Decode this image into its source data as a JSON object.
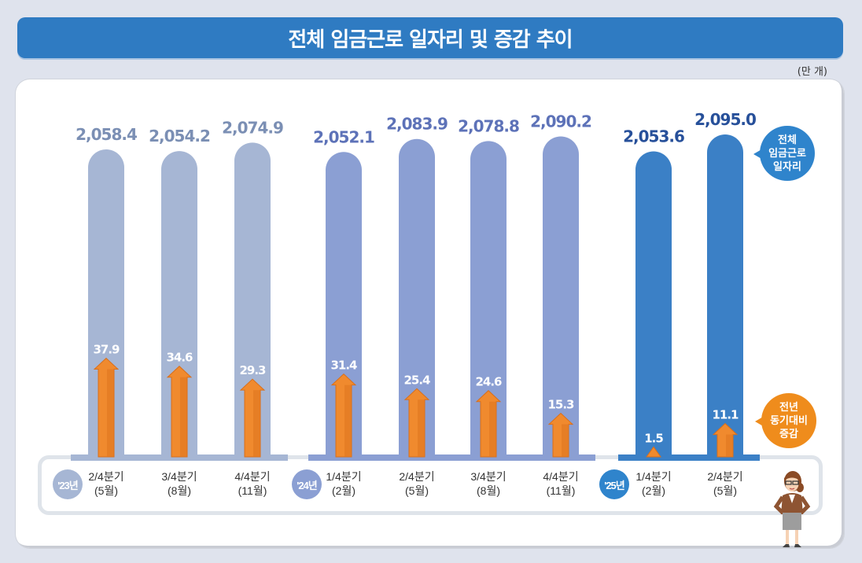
{
  "header": {
    "title": "전체 임금근로 일자리 및 증감 추이",
    "unit": "(만 개)"
  },
  "legend": {
    "total_callout": [
      "전체",
      "임금근로",
      "일자리"
    ],
    "change_callout": [
      "전년",
      "동기대비",
      "증감"
    ]
  },
  "colors": {
    "title_bar": "#2f7bc2",
    "group_2023": "#a6b6d4",
    "group_2024": "#8b9fd3",
    "group_2025": "#3b80c6",
    "label_2023": "#7b8fb4",
    "label_2024": "#5d72b8",
    "label_2025": "#27509a",
    "arrow": "#f08a2e",
    "callout_change": "#ef8c1c",
    "callout_total": "#2f84cc"
  },
  "chart_data": {
    "type": "bar",
    "title": "전체 임금근로 일자리 및 증감 추이",
    "unit": "만 개",
    "groups": [
      {
        "year": "'23년",
        "year_badge": "'23년",
        "color_key": "2023",
        "categories": [
          {
            "quarter": "2/4분기",
            "month": "(5월)"
          },
          {
            "quarter": "3/4분기",
            "month": "(8월)"
          },
          {
            "quarter": "4/4분기",
            "month": "(11월)"
          }
        ]
      },
      {
        "year": "'24년",
        "year_badge": "'24년",
        "color_key": "2024",
        "categories": [
          {
            "quarter": "1/4분기",
            "month": "(2월)"
          },
          {
            "quarter": "2/4분기",
            "month": "(5월)"
          },
          {
            "quarter": "3/4분기",
            "month": "(8월)"
          },
          {
            "quarter": "4/4분기",
            "month": "(11월)"
          }
        ]
      },
      {
        "year": "'25년",
        "year_badge": "'25년",
        "color_key": "2025",
        "categories": [
          {
            "quarter": "1/4분기",
            "month": "(2월)"
          },
          {
            "quarter": "2/4분기",
            "month": "(5월)"
          }
        ]
      }
    ],
    "categories": [
      "'23 2/4분기",
      "'23 3/4분기",
      "'23 4/4분기",
      "'24 1/4분기",
      "'24 2/4분기",
      "'24 3/4분기",
      "'24 4/4분기",
      "'25 1/4분기",
      "'25 2/4분기"
    ],
    "series": [
      {
        "name": "전체 임금근로 일자리",
        "values": [
          2058.4,
          2054.2,
          2074.9,
          2052.1,
          2083.9,
          2078.8,
          2090.2,
          2053.6,
          2095.0
        ],
        "labels": [
          "2,058.4",
          "2,054.2",
          "2,074.9",
          "2,052.1",
          "2,083.9",
          "2,078.8",
          "2,090.2",
          "2,053.6",
          "2,095.0"
        ]
      },
      {
        "name": "전년 동기대비 증감",
        "values": [
          37.9,
          34.6,
          29.3,
          31.4,
          25.4,
          24.6,
          15.3,
          1.5,
          11.1
        ],
        "labels": [
          "37.9",
          "34.6",
          "29.3",
          "31.4",
          "25.4",
          "24.6",
          "15.3",
          "1.5",
          "11.1"
        ]
      }
    ],
    "xlabel": "",
    "ylabel": "",
    "grid": false
  }
}
